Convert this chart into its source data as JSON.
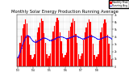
{
  "title": "Monthly Solar Energy Production Running Average",
  "title_fontsize": 3.8,
  "bar_color": "#ff0000",
  "avg_color": "#0000ff",
  "background_color": "#ffffff",
  "grid_color": "#bbbbbb",
  "ylim": [
    0,
    700
  ],
  "yticks": [
    0,
    100,
    200,
    300,
    400,
    500,
    600,
    700
  ],
  "ytick_labels": [
    "0",
    "1k",
    "2k",
    "3k",
    "4k",
    "5k",
    "6k",
    "7k"
  ],
  "values": [
    120,
    155,
    320,
    420,
    510,
    570,
    630,
    580,
    420,
    295,
    150,
    95,
    125,
    165,
    360,
    455,
    525,
    595,
    650,
    610,
    450,
    320,
    168,
    108,
    140,
    178,
    370,
    470,
    545,
    600,
    655,
    618,
    458,
    340,
    178,
    118,
    148,
    185,
    385,
    480,
    540,
    595,
    645,
    608,
    440,
    315,
    162,
    102,
    138,
    172,
    360,
    462,
    530,
    588,
    638,
    598,
    432,
    308,
    156,
    98,
    128,
    162,
    355,
    455,
    522,
    582,
    630,
    590,
    425,
    302,
    150,
    93
  ],
  "running_avg": [
    120,
    138,
    198,
    254,
    305,
    349,
    393,
    416,
    416,
    402,
    381,
    355,
    338,
    328,
    330,
    338,
    347,
    358,
    370,
    381,
    385,
    382,
    375,
    364,
    355,
    349,
    353,
    361,
    370,
    379,
    389,
    397,
    400,
    401,
    397,
    390,
    382,
    376,
    378,
    384,
    391,
    398,
    406,
    412,
    412,
    407,
    399,
    389,
    379,
    371,
    373,
    380,
    388,
    396,
    404,
    410,
    409,
    404,
    396,
    386,
    375,
    367,
    368,
    374,
    382,
    389,
    397,
    402,
    401,
    396,
    388,
    377
  ],
  "n_bars": 72,
  "legend_bar": "Monthly Prod.",
  "legend_avg": "Running Avg.",
  "tick_fontsize": 2.2,
  "year_positions": [
    0,
    12,
    24,
    36,
    48,
    60
  ],
  "year_labels": [
    "'03",
    "'04",
    "'05",
    "'06",
    "'07",
    "'08"
  ]
}
